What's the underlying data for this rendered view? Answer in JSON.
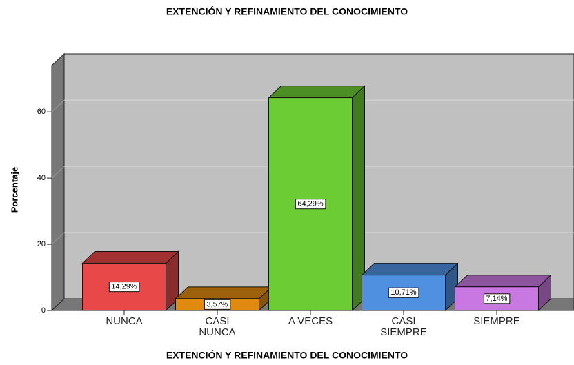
{
  "chart_data": {
    "type": "bar3d",
    "title": "EXTENCIÓN Y REFINAMIENTO DEL CONOCIMIENTO",
    "x_label": "EXTENCIÓN Y REFINAMIENTO DEL CONOCIMIENTO",
    "y_label": "Porcentaje",
    "categories": [
      "NUNCA",
      "CASI NUNCA",
      "A VECES",
      "CASI SIEMPRE",
      "SIEMPRE"
    ],
    "values": [
      14.29,
      3.57,
      64.29,
      10.71,
      7.14
    ],
    "value_labels": [
      "14,29%",
      "3,57%",
      "64,29%",
      "10,71%",
      "7,14%"
    ],
    "colors": [
      "#e84848",
      "#e08a10",
      "#6ccc34",
      "#5090e0",
      "#c878e0"
    ],
    "ylim": [
      0,
      74
    ],
    "yticks": [
      0,
      20,
      40,
      60
    ],
    "grid": true
  }
}
